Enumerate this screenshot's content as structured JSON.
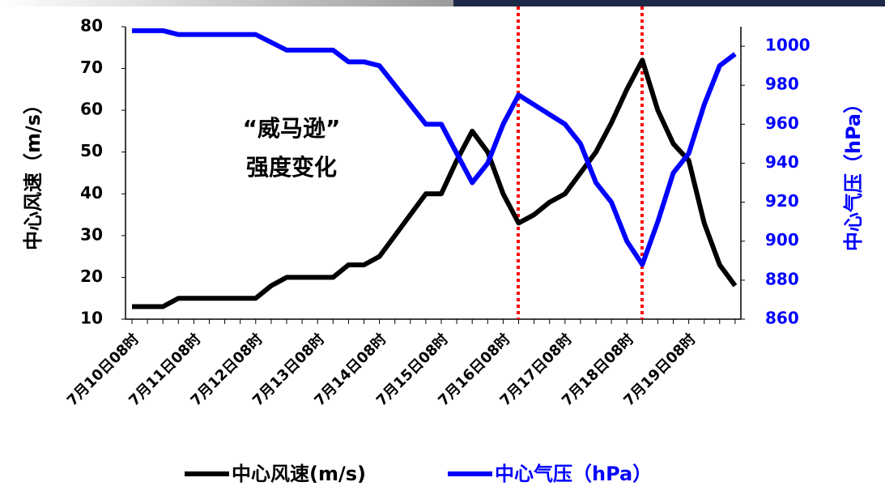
{
  "chart_data": {
    "type": "line",
    "annotation": [
      "“威马逊”",
      "强度变化"
    ],
    "ylabel": "中心风速（m/s）",
    "y2label": "中心气压（hPa）",
    "categories": [
      "7月10日08时",
      null,
      null,
      null,
      "7月11日08时",
      null,
      null,
      null,
      "7月12日08时",
      null,
      null,
      null,
      "7月13日08时",
      null,
      null,
      null,
      "7月14日08时",
      null,
      null,
      null,
      "7月15日08时",
      null,
      null,
      null,
      "7月16日08时",
      null,
      null,
      null,
      "7月17日08时",
      null,
      null,
      null,
      "7月18日08时",
      null,
      null,
      null,
      "7月19日08时",
      null,
      null,
      null
    ],
    "series": [
      {
        "name": "中心风速(m/s)",
        "color": "#000000",
        "values": [
          13,
          13,
          13,
          15,
          15,
          15,
          15,
          15,
          15,
          18,
          20,
          20,
          20,
          20,
          23,
          23,
          25,
          30,
          35,
          40,
          40,
          48,
          55,
          50,
          40,
          33,
          35,
          38,
          40,
          45,
          50,
          57,
          65,
          72,
          60,
          52,
          48,
          33,
          23,
          18
        ]
      },
      {
        "name": "中心气压（hPa）",
        "color": "#0000ff",
        "axis": "y2",
        "values": [
          1008,
          1008,
          1008,
          1006,
          1006,
          1006,
          1006,
          1006,
          1006,
          1002,
          998,
          998,
          998,
          998,
          992,
          992,
          990,
          980,
          970,
          960,
          960,
          945,
          930,
          940,
          960,
          975,
          970,
          965,
          960,
          950,
          930,
          920,
          900,
          888,
          910,
          935,
          945,
          970,
          990,
          996
        ]
      }
    ],
    "ylim": [
      10,
      80
    ],
    "yticks": [
      10,
      20,
      30,
      40,
      50,
      60,
      70,
      80
    ],
    "y2lim": [
      860,
      1010
    ],
    "y2ticks": [
      860,
      880,
      900,
      920,
      940,
      960,
      980,
      1000
    ],
    "grid": false
  }
}
